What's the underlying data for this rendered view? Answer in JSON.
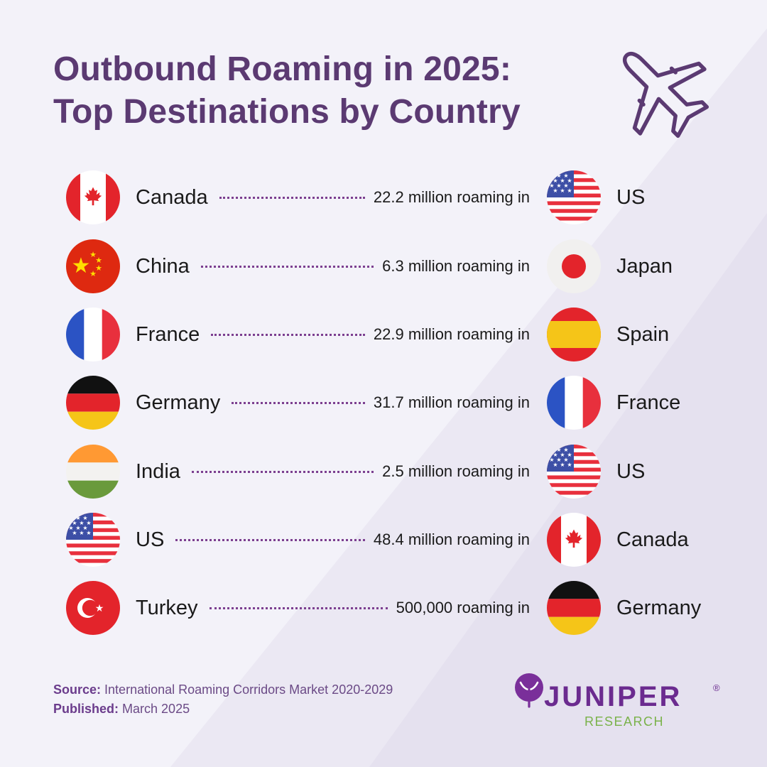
{
  "title": {
    "line1": "Outbound Roaming in 2025:",
    "line2": "Top Destinations by Country"
  },
  "rows": [
    {
      "origin": "Canada",
      "value": "22.2 million roaming in",
      "destination": "US"
    },
    {
      "origin": "China",
      "value": "6.3 million roaming in",
      "destination": "Japan"
    },
    {
      "origin": "France",
      "value": "22.9 million roaming in",
      "destination": "Spain"
    },
    {
      "origin": "Germany",
      "value": "31.7 million roaming in",
      "destination": "France"
    },
    {
      "origin": "India",
      "value": "2.5 million roaming in",
      "destination": "US"
    },
    {
      "origin": "US",
      "value": "48.4 million roaming in",
      "destination": "Canada"
    },
    {
      "origin": "Turkey",
      "value": "500,000 roaming in",
      "destination": "Germany"
    }
  ],
  "flags": {
    "origins": [
      "canada-flag-icon",
      "china-flag-icon",
      "france-flag-icon",
      "germany-flag-icon",
      "india-flag-icon",
      "us-flag-icon",
      "turkey-flag-icon"
    ],
    "destinations": [
      "us-flag-icon",
      "japan-flag-icon",
      "spain-flag-icon",
      "france-flag-icon",
      "us-flag-icon",
      "canada-flag-icon",
      "germany-flag-icon"
    ]
  },
  "source": {
    "source_label": "Source:",
    "source_value": "International Roaming Corridors Market 2020-2029",
    "published_label": "Published:",
    "published_value": "March 2025"
  },
  "logo": {
    "name": "JUNIPER",
    "registered": "®",
    "subtitle": "RESEARCH"
  },
  "colors": {
    "title": "#5b3a72",
    "dots": "#7c3f90",
    "logo_purple": "#6b2b8f",
    "logo_green": "#7ab24a",
    "background": "#f3f2f9"
  },
  "icons": {
    "header": "airplane-icon"
  }
}
